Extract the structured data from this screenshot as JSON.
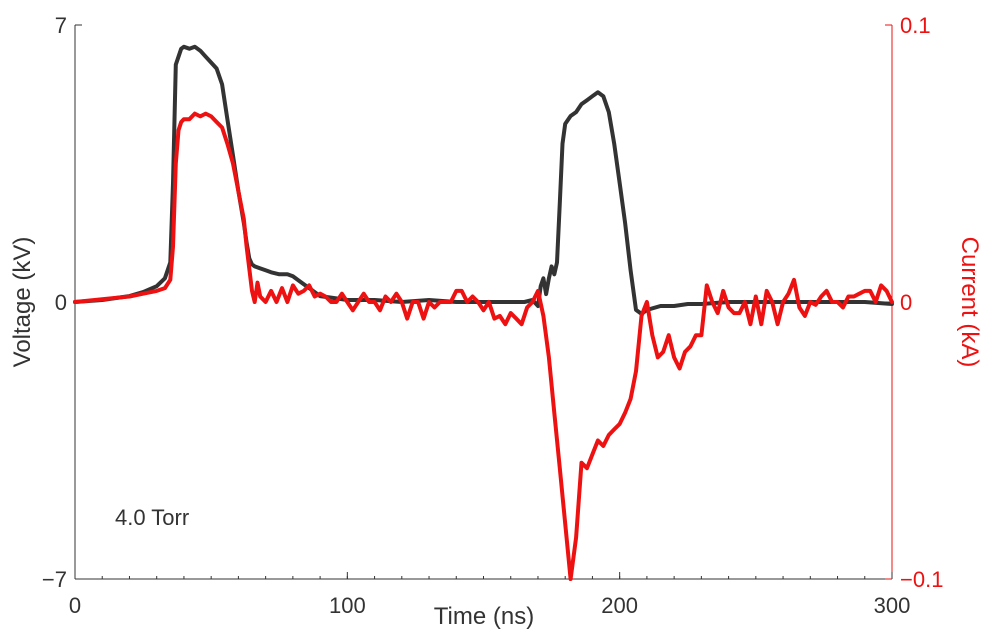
{
  "chart_data": {
    "type": "line",
    "xlabel": "Time (ns)",
    "ylabel_left": "Voltage (kV)",
    "ylabel_right": "Current (kA)",
    "xlim": [
      0,
      300
    ],
    "ylim_left": [
      -7,
      7
    ],
    "ylim_right": [
      -0.1,
      0.1
    ],
    "x_ticks": [
      0,
      100,
      200,
      300
    ],
    "x_tick_labels": [
      "0",
      "100",
      "200",
      "300"
    ],
    "y_left_ticks": [
      -7,
      0,
      7
    ],
    "y_left_tick_labels": [
      "−7",
      "0",
      "7"
    ],
    "y_right_ticks": [
      -0.1,
      0,
      0.1
    ],
    "y_right_tick_labels": [
      "−0.1",
      "0",
      "0.1"
    ],
    "annotation": "4.0 Torr",
    "grid": false,
    "colors": {
      "voltage": "#333333",
      "current": "#ee1111",
      "right_axis": "#ee1111",
      "left_axis": "#333333"
    },
    "series": [
      {
        "axis": "left",
        "x": [
          0,
          10,
          20,
          25,
          30,
          33,
          35,
          36,
          37,
          38,
          39,
          40,
          42,
          44,
          46,
          48,
          50,
          52,
          54,
          56,
          58,
          60,
          62,
          63,
          64,
          65,
          66,
          68,
          70,
          72,
          75,
          78,
          80,
          82,
          84,
          86,
          88,
          90,
          95,
          100,
          110,
          120,
          130,
          140,
          150,
          160,
          165,
          168,
          170,
          171,
          172,
          173,
          174,
          175,
          176,
          177,
          178,
          179,
          180,
          182,
          184,
          186,
          188,
          190,
          192,
          194,
          196,
          198,
          200,
          202,
          204,
          206,
          208,
          210,
          215,
          220,
          225,
          230,
          240,
          250,
          260,
          270,
          280,
          290,
          300
        ],
        "y": [
          0.0,
          0.05,
          0.15,
          0.25,
          0.4,
          0.6,
          1.0,
          3.0,
          6.0,
          6.2,
          6.4,
          6.45,
          6.4,
          6.45,
          6.35,
          6.2,
          6.05,
          5.9,
          5.5,
          4.6,
          3.7,
          2.8,
          2.0,
          1.5,
          1.1,
          0.95,
          0.9,
          0.85,
          0.8,
          0.75,
          0.7,
          0.7,
          0.65,
          0.55,
          0.45,
          0.35,
          0.25,
          0.15,
          0.1,
          0.05,
          0.05,
          0.0,
          0.05,
          0.0,
          0.0,
          0.0,
          0.0,
          0.05,
          -0.1,
          0.4,
          0.6,
          0.2,
          0.6,
          0.9,
          0.7,
          1.0,
          2.5,
          4.0,
          4.5,
          4.7,
          4.8,
          5.0,
          5.1,
          5.2,
          5.3,
          5.2,
          4.8,
          4.0,
          3.0,
          2.0,
          0.8,
          -0.2,
          -0.3,
          -0.2,
          -0.1,
          -0.1,
          -0.05,
          -0.05,
          0.0,
          0.0,
          0.0,
          0.0,
          0.0,
          0.0,
          -0.05
        ]
      },
      {
        "axis": "right",
        "x": [
          0,
          10,
          20,
          25,
          30,
          33,
          35,
          36,
          37,
          38,
          39,
          40,
          42,
          44,
          46,
          48,
          50,
          52,
          54,
          56,
          58,
          60,
          62,
          63,
          64,
          65,
          66,
          67,
          68,
          70,
          72,
          74,
          76,
          78,
          80,
          82,
          84,
          86,
          88,
          90,
          92,
          94,
          96,
          98,
          100,
          102,
          104,
          106,
          108,
          110,
          112,
          114,
          116,
          118,
          120,
          122,
          124,
          126,
          128,
          130,
          132,
          134,
          136,
          138,
          140,
          142,
          144,
          146,
          148,
          150,
          152,
          154,
          156,
          158,
          160,
          162,
          164,
          166,
          168,
          170,
          172,
          174,
          176,
          178,
          180,
          182,
          184,
          186,
          188,
          190,
          192,
          194,
          196,
          198,
          200,
          202,
          204,
          206,
          208,
          210,
          212,
          214,
          216,
          218,
          220,
          222,
          224,
          226,
          228,
          230,
          232,
          234,
          236,
          238,
          240,
          242,
          244,
          246,
          248,
          250,
          252,
          254,
          256,
          258,
          260,
          262,
          264,
          266,
          268,
          270,
          272,
          274,
          276,
          278,
          280,
          282,
          284,
          286,
          288,
          290,
          292,
          294,
          296,
          298,
          300
        ],
        "y": [
          0.0,
          0.001,
          0.002,
          0.003,
          0.004,
          0.005,
          0.008,
          0.02,
          0.05,
          0.062,
          0.065,
          0.066,
          0.066,
          0.068,
          0.067,
          0.068,
          0.067,
          0.065,
          0.063,
          0.057,
          0.05,
          0.04,
          0.03,
          0.02,
          0.012,
          0.004,
          0.0,
          0.007,
          0.002,
          0.0,
          0.004,
          0.0,
          0.005,
          0.0,
          0.006,
          0.003,
          0.004,
          0.006,
          0.002,
          0.003,
          0.002,
          0.0,
          0.0,
          0.003,
          0.0,
          -0.003,
          0.0,
          0.003,
          0.0,
          0.0,
          -0.003,
          0.002,
          0.0,
          0.003,
          0.0,
          -0.006,
          0.0,
          0.0,
          -0.006,
          0.0,
          -0.002,
          0.0,
          0.0,
          0.0,
          0.004,
          0.004,
          0.0,
          0.002,
          0.0,
          -0.003,
          0.0,
          -0.006,
          -0.005,
          -0.008,
          -0.004,
          -0.006,
          -0.008,
          -0.002,
          0.0,
          0.004,
          -0.005,
          -0.02,
          -0.04,
          -0.06,
          -0.08,
          -0.1,
          -0.085,
          -0.058,
          -0.06,
          -0.055,
          -0.05,
          -0.052,
          -0.048,
          -0.046,
          -0.044,
          -0.04,
          -0.035,
          -0.025,
          -0.005,
          0.0,
          -0.012,
          -0.02,
          -0.018,
          -0.012,
          -0.02,
          -0.024,
          -0.018,
          -0.016,
          -0.012,
          -0.012,
          0.006,
          0.0,
          -0.004,
          0.004,
          -0.002,
          -0.004,
          -0.004,
          0.0,
          -0.008,
          0.002,
          -0.008,
          0.004,
          0.0,
          -0.008,
          0.0,
          0.003,
          0.008,
          -0.002,
          -0.005,
          0.0,
          -0.001,
          0.002,
          0.004,
          0.0,
          0.0,
          -0.002,
          0.002,
          0.002,
          0.003,
          0.004,
          0.004,
          0.0,
          0.006,
          0.004,
          0.0
        ]
      }
    ]
  }
}
